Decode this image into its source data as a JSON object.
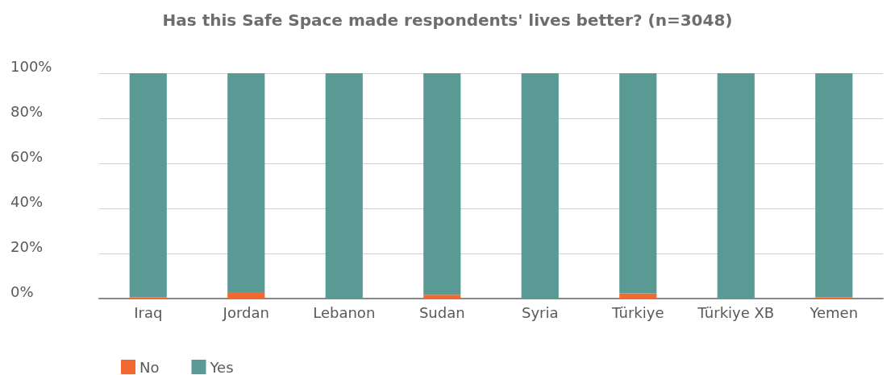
{
  "chart_data": {
    "type": "bar",
    "title": "Has this Safe Space made respondents' lives better? (n=3048)",
    "categories": [
      "Iraq",
      "Jordan",
      "Lebanon",
      "Sudan",
      "Syria",
      "Türkiye",
      "Türkiye XB",
      "Yemen"
    ],
    "stacked": true,
    "series": [
      {
        "name": "No",
        "color": "#f26a32",
        "values": [
          0.5,
          2.9,
          0,
          1.7,
          0,
          2.3,
          0,
          0.5
        ]
      },
      {
        "name": "Yes",
        "color": "#5a9a94",
        "values": [
          99.5,
          97.1,
          100,
          98.3,
          100,
          97.7,
          100,
          99.5
        ]
      }
    ],
    "ylim": [
      0,
      100
    ],
    "yticks": [
      {
        "value": 0,
        "label": "0%"
      },
      {
        "value": 20,
        "label": "20%"
      },
      {
        "value": 40,
        "label": "40%"
      },
      {
        "value": 60,
        "label": "60%"
      },
      {
        "value": 80,
        "label": "80%"
      },
      {
        "value": 100,
        "label": "100%"
      }
    ],
    "grid": "y",
    "legend": "bottom left"
  }
}
